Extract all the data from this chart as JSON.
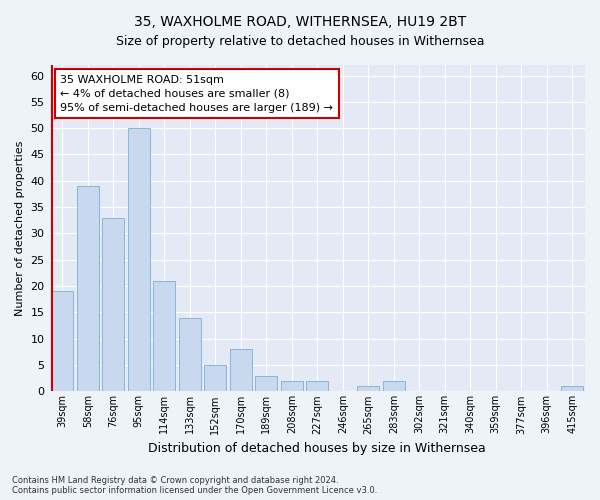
{
  "title": "35, WAXHOLME ROAD, WITHERNSEA, HU19 2BT",
  "subtitle": "Size of property relative to detached houses in Withernsea",
  "xlabel": "Distribution of detached houses by size in Withernsea",
  "ylabel": "Number of detached properties",
  "categories": [
    "39sqm",
    "58sqm",
    "76sqm",
    "95sqm",
    "114sqm",
    "133sqm",
    "152sqm",
    "170sqm",
    "189sqm",
    "208sqm",
    "227sqm",
    "246sqm",
    "265sqm",
    "283sqm",
    "302sqm",
    "321sqm",
    "340sqm",
    "359sqm",
    "377sqm",
    "396sqm",
    "415sqm"
  ],
  "values": [
    19,
    39,
    33,
    50,
    21,
    14,
    5,
    8,
    3,
    2,
    2,
    0,
    1,
    2,
    0,
    0,
    0,
    0,
    0,
    0,
    1
  ],
  "bar_color": "#c8d8ee",
  "bar_edge_color": "#7aafd4",
  "vline_color": "#cc0000",
  "annotation_text": "35 WAXHOLME ROAD: 51sqm\n← 4% of detached houses are smaller (8)\n95% of semi-detached houses are larger (189) →",
  "annotation_box_color": "#ffffff",
  "annotation_box_edge": "#cc0000",
  "ylim": [
    0,
    62
  ],
  "yticks": [
    0,
    5,
    10,
    15,
    20,
    25,
    30,
    35,
    40,
    45,
    50,
    55,
    60
  ],
  "footer1": "Contains HM Land Registry data © Crown copyright and database right 2024.",
  "footer2": "Contains public sector information licensed under the Open Government Licence v3.0.",
  "bg_color": "#eef2f9",
  "plot_bg_color": "#e4eaf5",
  "grid_color": "#ffffff",
  "title_fontsize": 10,
  "subtitle_fontsize": 9
}
